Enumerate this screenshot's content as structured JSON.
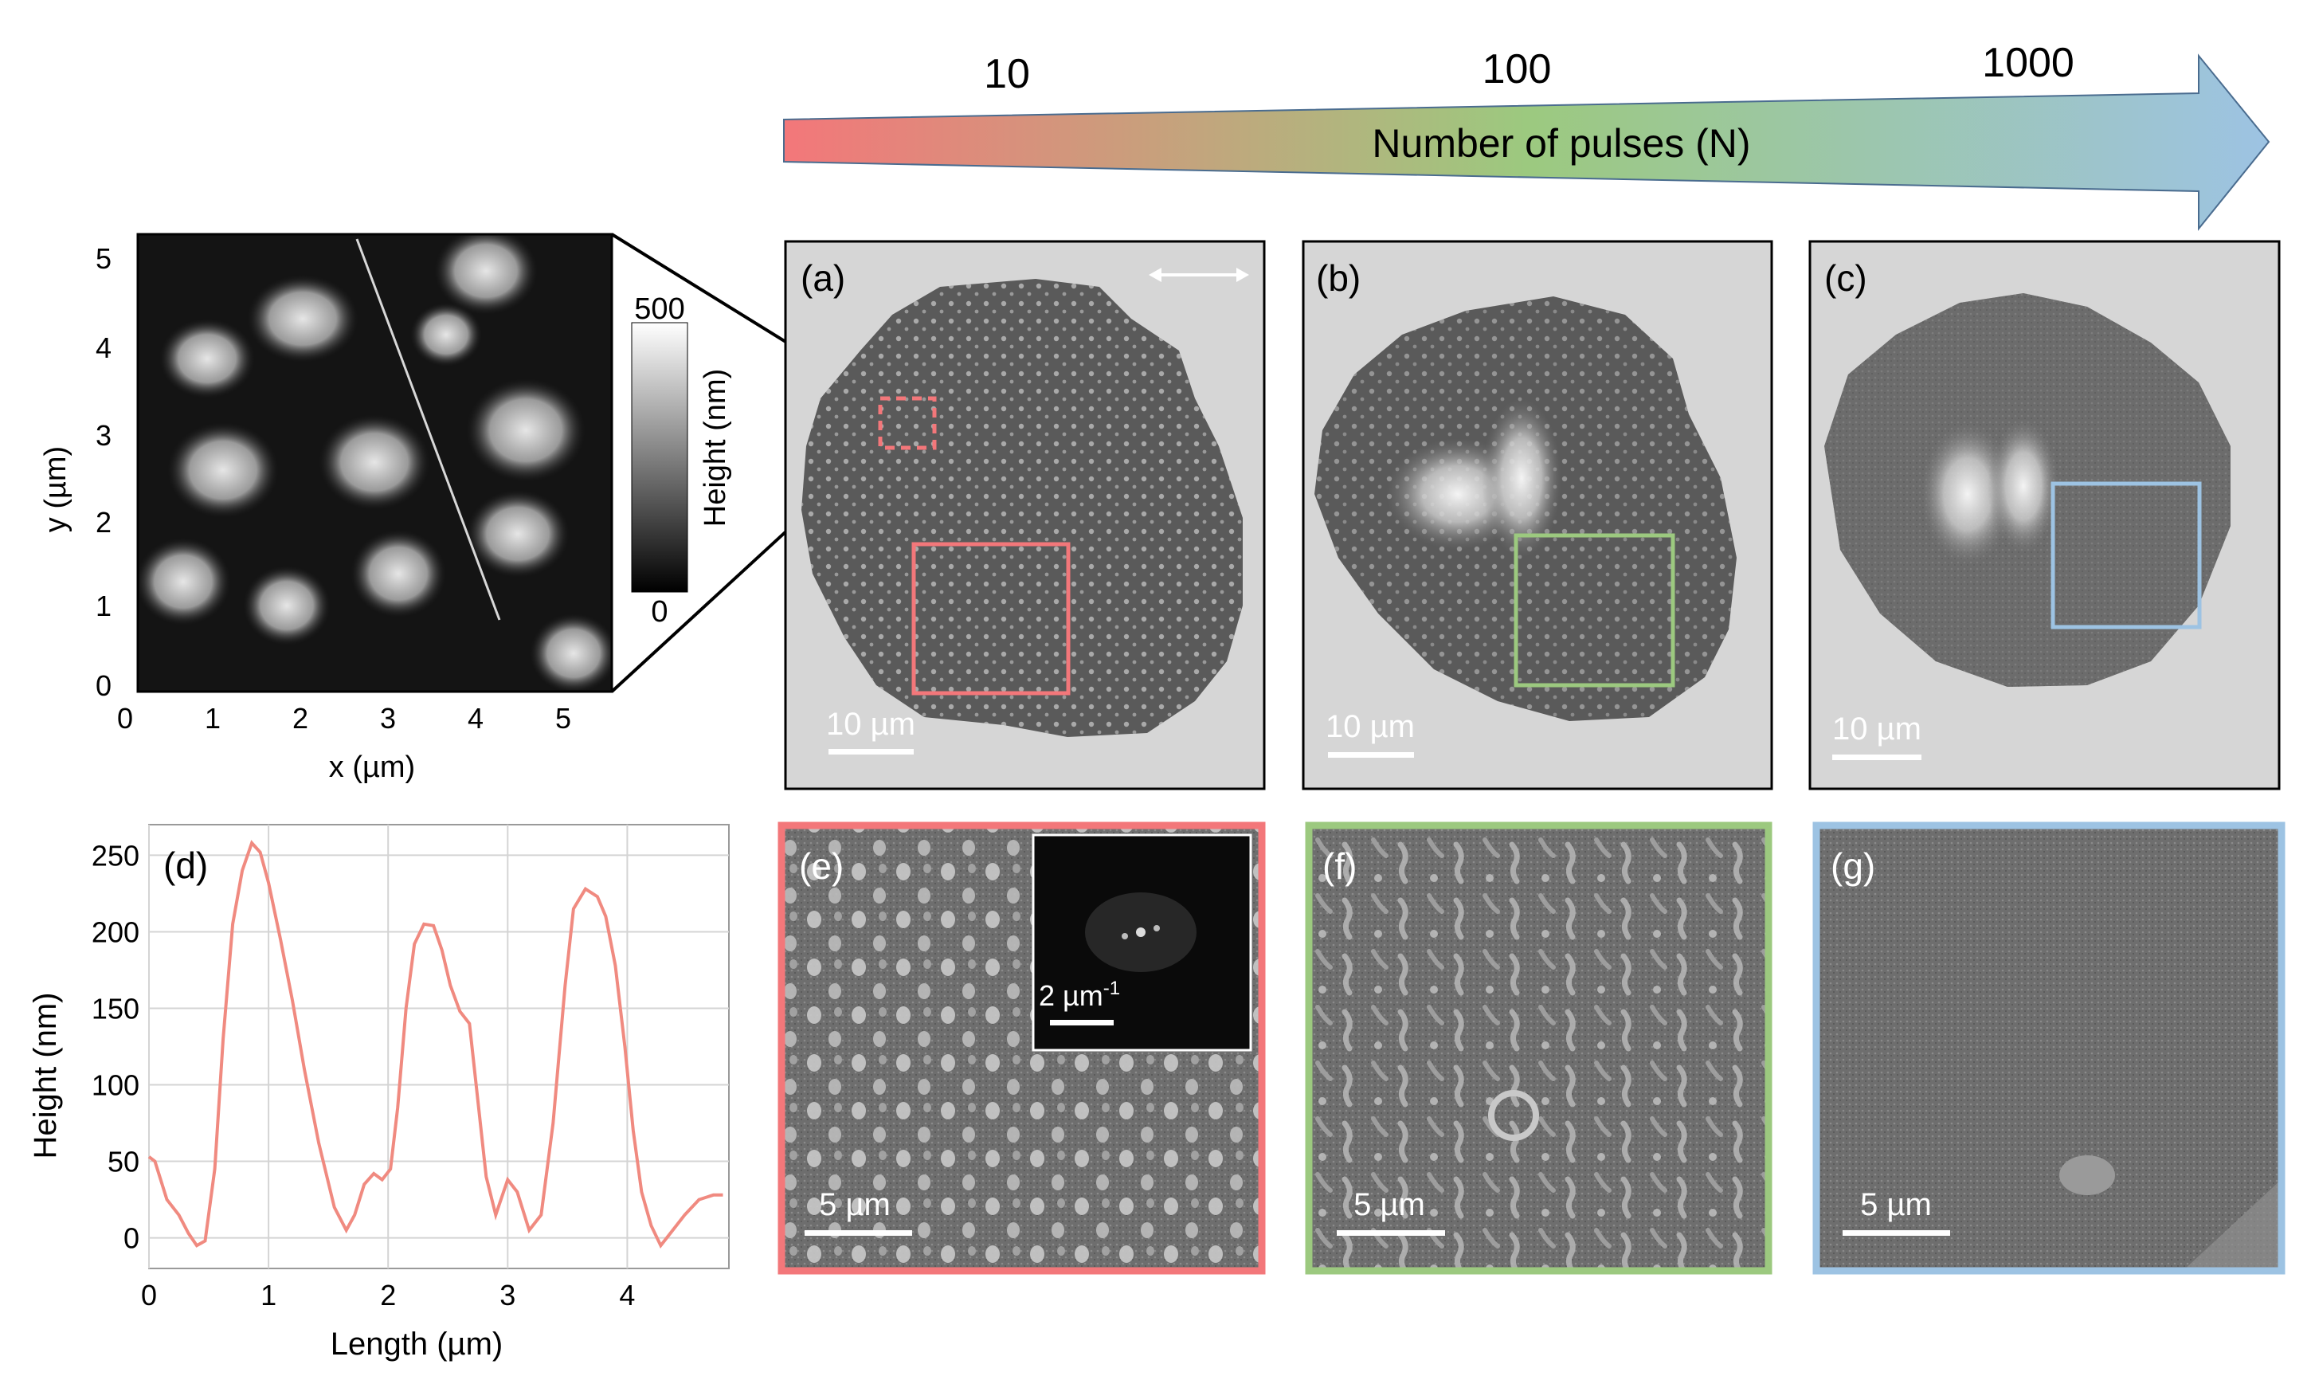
{
  "arrow": {
    "label": "Number of pulses (N)",
    "ticks": [
      "10",
      "100",
      "1000"
    ],
    "colors": [
      "#f3777a",
      "#9cc97f",
      "#9dc3e3"
    ]
  },
  "afm": {
    "xlabel": "x (µm)",
    "ylabel": "y (µm)",
    "xticks": [
      "0",
      "1",
      "2",
      "3",
      "4",
      "5"
    ],
    "yticks": [
      "0",
      "1",
      "2",
      "3",
      "4",
      "5"
    ],
    "colorbar": {
      "label": "Height (nm)",
      "max": "500",
      "min": "0"
    }
  },
  "panels": {
    "a": {
      "label": "(a)",
      "scale": "10 µm",
      "frame_color": "#f3777a"
    },
    "b": {
      "label": "(b)",
      "scale": "10 µm",
      "frame_color": "#9cc97f"
    },
    "c": {
      "label": "(c)",
      "scale": "10 µm",
      "frame_color": "#9dc3e3"
    },
    "e": {
      "label": "(e)",
      "scale": "5 µm",
      "inset_scale": "2 µm",
      "inset_sup": "-1",
      "frame_color": "#f3777a"
    },
    "f": {
      "label": "(f)",
      "scale": "5 µm",
      "frame_color": "#9cc97f"
    },
    "g": {
      "label": "(g)",
      "scale": "5 µm",
      "frame_color": "#9dc3e3"
    }
  },
  "chart_data": {
    "type": "line",
    "panel_label": "(d)",
    "xlabel": "Length (µm)",
    "ylabel": "Height (nm)",
    "xlim": [
      0,
      4.85
    ],
    "ylim": [
      -20,
      270
    ],
    "xticks": [
      0,
      1,
      2,
      3,
      4
    ],
    "yticks": [
      0,
      50,
      100,
      150,
      200,
      250
    ],
    "grid": true,
    "color": "#f08a80",
    "x": [
      0,
      0.05,
      0.15,
      0.25,
      0.33,
      0.4,
      0.47,
      0.55,
      0.62,
      0.7,
      0.78,
      0.86,
      0.93,
      1.0,
      1.1,
      1.2,
      1.3,
      1.42,
      1.55,
      1.65,
      1.72,
      1.8,
      1.88,
      1.95,
      2.02,
      2.08,
      2.15,
      2.22,
      2.3,
      2.38,
      2.45,
      2.52,
      2.6,
      2.68,
      2.75,
      2.82,
      2.9,
      3.0,
      3.08,
      3.18,
      3.28,
      3.38,
      3.48,
      3.55,
      3.65,
      3.75,
      3.82,
      3.9,
      3.98,
      4.05,
      4.12,
      4.2,
      4.28,
      4.38,
      4.48,
      4.6,
      4.72,
      4.8
    ],
    "y": [
      53,
      50,
      25,
      15,
      3,
      -5,
      -2,
      45,
      130,
      205,
      240,
      258,
      252,
      232,
      195,
      155,
      110,
      62,
      20,
      5,
      15,
      35,
      42,
      38,
      45,
      85,
      150,
      192,
      205,
      204,
      188,
      165,
      148,
      140,
      90,
      40,
      15,
      38,
      30,
      5,
      15,
      75,
      165,
      215,
      228,
      223,
      210,
      178,
      125,
      70,
      30,
      8,
      -5,
      5,
      15,
      25,
      28,
      28
    ]
  }
}
